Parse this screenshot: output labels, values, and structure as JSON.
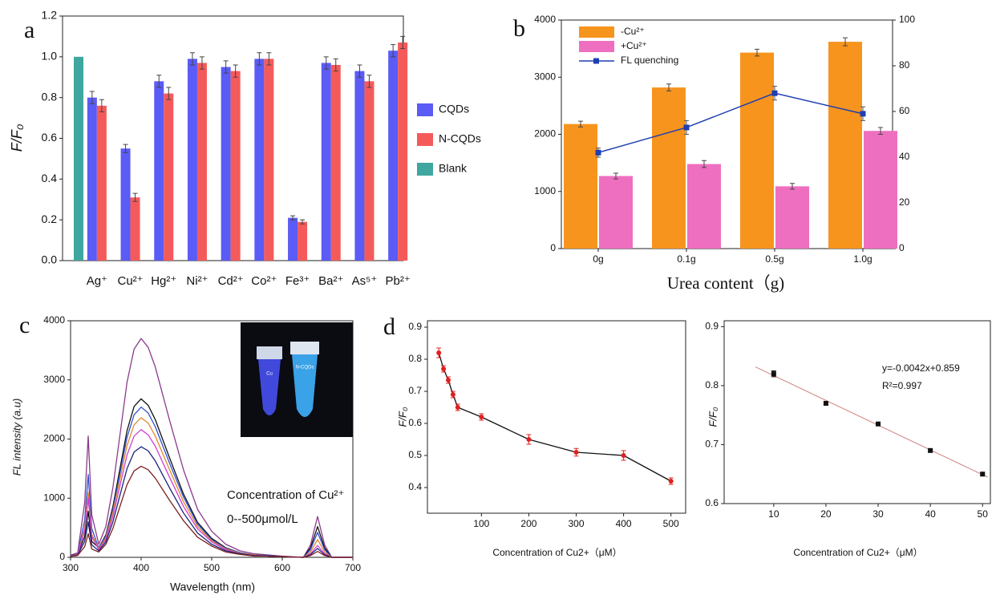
{
  "chart_data": [
    {
      "type": "bar",
      "panel_label": "a",
      "ylabel": "F/F₀",
      "categories": [
        null,
        "Ag⁺",
        "Cu²⁺",
        "Hg²⁺",
        "Ni²⁺",
        "Cd²⁺",
        "Co²⁺",
        "Fe³⁺",
        "Ba²⁺",
        "As⁵⁺",
        "Pb²⁺"
      ],
      "series": [
        {
          "name": "CQDs",
          "color": "#5b5bf5",
          "values": [
            null,
            0.8,
            0.55,
            0.88,
            0.99,
            0.95,
            0.99,
            0.21,
            0.97,
            0.93,
            1.03
          ],
          "errors": [
            null,
            0.03,
            0.02,
            0.03,
            0.03,
            0.03,
            0.03,
            0.01,
            0.03,
            0.03,
            0.03
          ]
        },
        {
          "name": "N-CQDs",
          "color": "#f55a5a",
          "values": [
            null,
            0.76,
            0.31,
            0.82,
            0.97,
            0.93,
            0.99,
            0.19,
            0.96,
            0.88,
            1.07
          ],
          "errors": [
            null,
            0.03,
            0.02,
            0.03,
            0.03,
            0.03,
            0.03,
            0.01,
            0.03,
            0.03,
            0.03
          ]
        },
        {
          "name": "Blank",
          "color": "#3fa6a0",
          "values": [
            1.0,
            null,
            null,
            null,
            null,
            null,
            null,
            null,
            null,
            null,
            null
          ]
        }
      ],
      "ylim": [
        0,
        1.2
      ],
      "yticks": [
        {
          "value": 0,
          "label": "0.0"
        },
        0.2,
        0.4,
        0.6,
        0.8,
        {
          "value": 1,
          "label": "1.0"
        },
        1.2
      ],
      "legend": "right"
    },
    {
      "type": "bar",
      "panel_label": "b",
      "xlabel": "Urea content（g)",
      "categories": [
        "0g",
        "0.1g",
        "0.5g",
        "1.0g"
      ],
      "series": [
        {
          "name": "-Cu²⁺",
          "color": "#f7941d",
          "values": [
            2180,
            2820,
            3430,
            3620
          ],
          "errors": [
            50,
            60,
            60,
            70
          ]
        },
        {
          "name": "+Cu²⁺",
          "color": "#ee6fc0",
          "values": [
            1270,
            1480,
            1090,
            2060
          ],
          "errors": [
            50,
            60,
            50,
            60
          ]
        },
        {
          "name": "FL quenching",
          "color": "#1f3fb0",
          "type": "line",
          "axis": "y2",
          "values": [
            42,
            53,
            68,
            59
          ],
          "errors": [
            2,
            3,
            3,
            3
          ]
        }
      ],
      "ylim": [
        0,
        4000
      ],
      "yticks": [
        0,
        1000,
        2000,
        3000,
        4000
      ],
      "y2lim": [
        0,
        100
      ],
      "y2ticks": [
        0,
        20,
        40,
        60,
        80,
        100
      ],
      "legend": "upper left"
    },
    {
      "type": "line",
      "panel_label": "c",
      "xlabel": "Wavelength (nm)",
      "ylabel": "FL intensity (a.u)",
      "x": [
        300,
        310,
        320,
        325,
        330,
        340,
        350,
        360,
        370,
        380,
        390,
        400,
        410,
        420,
        440,
        460,
        480,
        500,
        520,
        540,
        560,
        580,
        600,
        630,
        640,
        650,
        660,
        670,
        700
      ],
      "series": [
        {
          "color": "#8b3a8b",
          "values": [
            37,
            74,
            920,
            2050,
            720,
            220,
            520,
            1180,
            2070,
            2960,
            3520,
            3700,
            3550,
            3220,
            2330,
            1480,
            810,
            440,
            220,
            110,
            60,
            40,
            20,
            0,
            210,
            690,
            210,
            0,
            0
          ]
        },
        {
          "color": "#111111",
          "values": [
            27,
            54,
            350,
            780,
            270,
            160,
            380,
            860,
            1500,
            2140,
            2550,
            2680,
            2570,
            2330,
            1690,
            1070,
            590,
            320,
            160,
            80,
            40,
            30,
            10,
            0,
            160,
            520,
            160,
            0,
            0
          ]
        },
        {
          "color": "#3050d0",
          "values": [
            25,
            50,
            630,
            1400,
            490,
            150,
            360,
            810,
            1420,
            2030,
            2410,
            2540,
            2440,
            2210,
            1600,
            1020,
            560,
            300,
            150,
            80,
            40,
            30,
            10,
            0,
            130,
            420,
            130,
            0,
            0
          ]
        },
        {
          "color": "#e08a2a",
          "values": [
            24,
            47,
            500,
            1100,
            390,
            140,
            330,
            760,
            1320,
            1890,
            2240,
            2360,
            2270,
            2050,
            1490,
            940,
            520,
            280,
            140,
            70,
            40,
            20,
            10,
            0,
            90,
            300,
            90,
            0,
            0
          ]
        },
        {
          "color": "#d040d0",
          "values": [
            22,
            43,
            450,
            1000,
            350,
            130,
            300,
            690,
            1210,
            1730,
            2050,
            2160,
            2070,
            1880,
            1360,
            860,
            480,
            260,
            130,
            60,
            30,
            20,
            10,
            0,
            60,
            200,
            60,
            0,
            0
          ]
        },
        {
          "color": "#1a237e",
          "values": [
            19,
            37,
            270,
            600,
            210,
            110,
            260,
            600,
            1050,
            1500,
            1780,
            1870,
            1800,
            1630,
            1180,
            750,
            410,
            220,
            110,
            60,
            30,
            20,
            10,
            0,
            45,
            150,
            45,
            0,
            0
          ]
        },
        {
          "color": "#7b1f1f",
          "values": [
            15,
            31,
            180,
            400,
            140,
            90,
            220,
            490,
            860,
            1230,
            1460,
            1540,
            1480,
            1340,
            970,
            620,
            340,
            190,
            90,
            50,
            20,
            20,
            10,
            0,
            30,
            100,
            30,
            0,
            0
          ]
        }
      ],
      "xlim": [
        300,
        700
      ],
      "xticks": [
        300,
        400,
        500,
        600,
        700
      ],
      "ylim": [
        0,
        4000
      ],
      "yticks": [
        0,
        1000,
        2000,
        3000,
        4000
      ],
      "annotations": [
        "Concentration of Cu²⁺",
        "0--500μmol/L"
      ],
      "inset_labels": [
        "Cu",
        "N-CQDs"
      ]
    },
    {
      "type": "line",
      "panel_label": "d",
      "xlabel": "Concentration of Cu2+（μM）",
      "ylabel": "F/F₀",
      "x": [
        10,
        20,
        30,
        40,
        50,
        100,
        200,
        300,
        400,
        500
      ],
      "series": [
        {
          "color": "#111111",
          "marker_color": "#e02020",
          "values": [
            0.82,
            0.77,
            0.735,
            0.69,
            0.65,
            0.62,
            0.55,
            0.51,
            0.5,
            0.42
          ],
          "errors": [
            0.015,
            0.01,
            0.01,
            0.01,
            0.01,
            0.01,
            0.015,
            0.012,
            0.015,
            0.01
          ]
        }
      ],
      "xlim": [
        -14,
        531
      ],
      "xticks": [
        100,
        200,
        300,
        400,
        500
      ],
      "ylim": [
        0.32,
        0.92
      ],
      "yticks": [
        0.4,
        0.5,
        0.6,
        0.7,
        0.8,
        0.9
      ]
    },
    {
      "type": "scatter",
      "xlabel": "Concentration of Cu2+（μM）",
      "ylabel": "F/F₀",
      "x": [
        10,
        20,
        30,
        40,
        50
      ],
      "series": [
        {
          "color": "#111111",
          "values": [
            0.82,
            0.77,
            0.735,
            0.69,
            0.65
          ],
          "errors": [
            0.005,
            0.003,
            0.003,
            0.003,
            0.003
          ]
        }
      ],
      "fit": {
        "slope": -0.0042,
        "intercept": 0.859,
        "color": "#d08080"
      },
      "xlim": [
        0.5,
        51.5
      ],
      "xticks": [
        10,
        20,
        30,
        40,
        50
      ],
      "ylim": [
        0.6,
        0.91
      ],
      "yticks": [
        0.6,
        0.7,
        0.8,
        0.9
      ],
      "annotations": [
        "y=-0.0042x+0.859",
        "R²=0.997"
      ]
    }
  ]
}
